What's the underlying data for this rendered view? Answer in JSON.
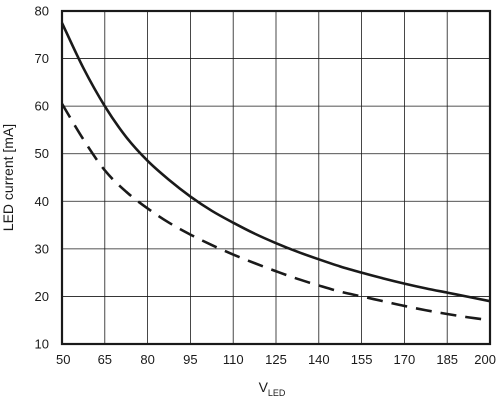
{
  "chart_data": {
    "type": "line",
    "title": "",
    "xlabel": "V",
    "xlabel_sub": "LED",
    "ylabel": "LED current [mA]",
    "xlim": [
      50,
      200
    ],
    "ylim": [
      10,
      80
    ],
    "x_ticks": [
      50,
      65,
      80,
      95,
      110,
      125,
      140,
      155,
      170,
      185,
      200
    ],
    "y_ticks": [
      10,
      20,
      30,
      40,
      50,
      60,
      70,
      80
    ],
    "grid": true,
    "legend": "none",
    "series": [
      {
        "style": "solid",
        "color": "#1a1a1a",
        "x": [
          50,
          57.5,
          65,
          72.5,
          80,
          87.5,
          95,
          102.5,
          110,
          117.5,
          125,
          132.5,
          140,
          147.5,
          155,
          162.5,
          170,
          177.5,
          185,
          192.5,
          200
        ],
        "y": [
          77.5,
          68.0,
          60.0,
          53.5,
          48.5,
          44.5,
          41.0,
          38.0,
          35.5,
          33.2,
          31.2,
          29.4,
          27.8,
          26.3,
          25.0,
          23.8,
          22.7,
          21.7,
          20.8,
          19.9,
          19.0
        ]
      },
      {
        "style": "dashed",
        "color": "#1a1a1a",
        "x": [
          50,
          57.5,
          65,
          72.5,
          80,
          87.5,
          95,
          102.5,
          110,
          117.5,
          125,
          132.5,
          140,
          147.5,
          155,
          162.5,
          170,
          177.5,
          185,
          192.5,
          200
        ],
        "y": [
          60.5,
          53.0,
          46.5,
          42.0,
          38.5,
          35.5,
          33.0,
          30.8,
          28.8,
          27.0,
          25.3,
          23.7,
          22.3,
          21.0,
          20.0,
          19.0,
          18.0,
          17.1,
          16.3,
          15.6,
          15.0
        ]
      }
    ]
  }
}
